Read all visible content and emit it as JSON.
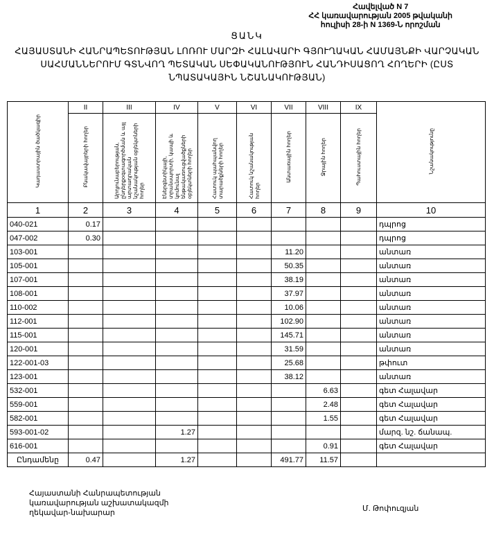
{
  "annex": {
    "line1": "Հավելված N 7",
    "line2": "ՀՀ կառավարության 2005 թվականի",
    "line3": "հուլիսի 28-ի N 1369-Ն որոշման"
  },
  "heading": "ՑԱՆԿ",
  "title": "ՀԱՅԱՍՏԱՆԻ ՀԱՆՐԱՊԵՏՈՒԹՅԱՆ ԼՈՌՈՒ ՄԱՐԶԻ ՀԱԼԱՎԱՐԻ ԳՅՈՒՂԱԿԱՆ ՀԱՄԱՅՆՔԻ ՎԱՐՉԱԿԱՆ ՍԱՀՄԱՆՆԵՐՈՒՄ ԳՏՆՎՈՂ ՊԵՏԱԿԱՆ ՍԵՓԱԿԱՆՈՒԹՅՈՒՆ ՀԱՆԴԻՍԱՑՈՂ ՀՈՂԵՐԻ (ԸՍՏ ՆՊԱՏԱԿԱՅԻՆ ՆՇԱՆԱԿՈՒԹՅԱՆ)",
  "table": {
    "roman": [
      "II",
      "III",
      "IV",
      "V",
      "VI",
      "VII",
      "VIII",
      "IX"
    ],
    "headers": [
      "Կադաստրային ծածկագիր",
      "Բնակավայրերի հողեր",
      "Արդյունաբերության, ընդերքօգտագործման և այլ արտադրական նշանակության օբյեկտների հողեր",
      "Էներգետիկայի, տրանսպորտի, կապի և կոմունալ ենթակառուցվածքների օբյեկտների հողեր",
      "Հատուկ պահպանվող տարածքների հողեր",
      "Հատուկ նշանակության հողեր",
      "Անտառային հողեր",
      "Ջրային հողեր",
      "Պահուստային հողեր",
      "Նշանակությունը"
    ],
    "col_numbers": [
      "1",
      "2",
      "3",
      "4",
      "5",
      "6",
      "7",
      "8",
      "9",
      "10"
    ],
    "rows": [
      [
        "040-021",
        "0.17",
        "",
        "",
        "",
        "",
        "",
        "",
        "",
        "դպրոց"
      ],
      [
        "047-002",
        "0.30",
        "",
        "",
        "",
        "",
        "",
        "",
        "",
        "դպրոց"
      ],
      [
        "103-001",
        "",
        "",
        "",
        "",
        "",
        "11.20",
        "",
        "",
        "անտառ"
      ],
      [
        "105-001",
        "",
        "",
        "",
        "",
        "",
        "50.35",
        "",
        "",
        "անտառ"
      ],
      [
        "107-001",
        "",
        "",
        "",
        "",
        "",
        "38.19",
        "",
        "",
        "անտառ"
      ],
      [
        "108-001",
        "",
        "",
        "",
        "",
        "",
        "37.97",
        "",
        "",
        "անտառ"
      ],
      [
        "110-002",
        "",
        "",
        "",
        "",
        "",
        "10.06",
        "",
        "",
        "անտառ"
      ],
      [
        "112-001",
        "",
        "",
        "",
        "",
        "",
        "102.90",
        "",
        "",
        "անտառ"
      ],
      [
        "115-001",
        "",
        "",
        "",
        "",
        "",
        "145.71",
        "",
        "",
        "անտառ"
      ],
      [
        "120-001",
        "",
        "",
        "",
        "",
        "",
        "31.59",
        "",
        "",
        "անտառ"
      ],
      [
        "122-001-03",
        "",
        "",
        "",
        "",
        "",
        "25.68",
        "",
        "",
        "թփուտ"
      ],
      [
        "123-001",
        "",
        "",
        "",
        "",
        "",
        "38.12",
        "",
        "",
        "անտառ"
      ],
      [
        "532-001",
        "",
        "",
        "",
        "",
        "",
        "",
        "6.63",
        "",
        "գետ Հալավար"
      ],
      [
        "559-001",
        "",
        "",
        "",
        "",
        "",
        "",
        "2.48",
        "",
        "գետ Հալավար"
      ],
      [
        "582-001",
        "",
        "",
        "",
        "",
        "",
        "",
        "1.55",
        "",
        "գետ Հալավար"
      ],
      [
        "593-001-02",
        "",
        "",
        "1.27",
        "",
        "",
        "",
        "",
        "",
        "մարզ. նշ. ճանապ."
      ],
      [
        "616-001",
        "",
        "",
        "",
        "",
        "",
        "",
        "0.91",
        "",
        "գետ Հալավար"
      ]
    ],
    "total": [
      "Ընդամենը",
      "0.47",
      "",
      "1.27",
      "",
      "",
      "491.77",
      "11.57",
      "",
      ""
    ]
  },
  "signature": {
    "line1": "Հայաստանի Հանրապետության",
    "line2": "կառավարության աշխատակազմի",
    "line3": "ղեկավար-նախարար",
    "name": "Մ. Թոփուզյան"
  }
}
